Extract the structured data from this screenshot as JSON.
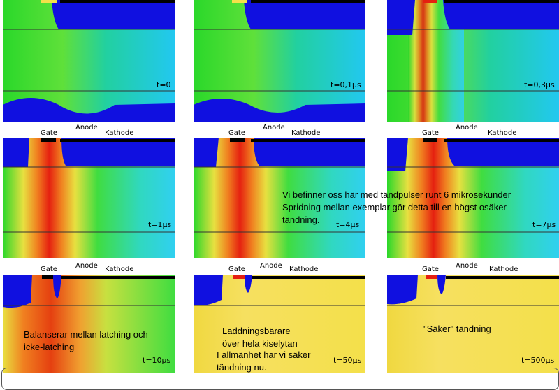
{
  "panels": [
    {
      "time": "t=0"
    },
    {
      "time": "t=0,1μs"
    },
    {
      "time": "t=0,3μs"
    },
    {
      "time": "t=1μs"
    },
    {
      "time": "t=4μs"
    },
    {
      "time": "t=7μs"
    },
    {
      "time": "t=10μs"
    },
    {
      "time": "t=50μs"
    },
    {
      "time": "t=500μs"
    }
  ],
  "electrode_labels": {
    "gate": "Gate",
    "anode": "Anode",
    "kathode": "Kathode"
  },
  "notes": {
    "main_line1": "Vi befinner oss här med tändpulser runt 6 mikrosekunder",
    "main_line2": "Spridning mellan exemplar gör detta till en högst osäker",
    "main_line3": "tändning.",
    "latching_line1": "Balanserar mellan latching och",
    "latching_line2": "icke-latching",
    "carriers_line1": "Laddningsbärare",
    "carriers_line2": "över hela kiselytan",
    "general_line1": "I allmänhet har vi säker",
    "general_line2": "tändning nu.",
    "safe": "\"Säker\" tändning"
  },
  "colors": {
    "blue": "#1010e0",
    "cyan": "#22d0ee",
    "green": "#2ad82a",
    "yellow": "#f4e04a",
    "red": "#e52010"
  }
}
